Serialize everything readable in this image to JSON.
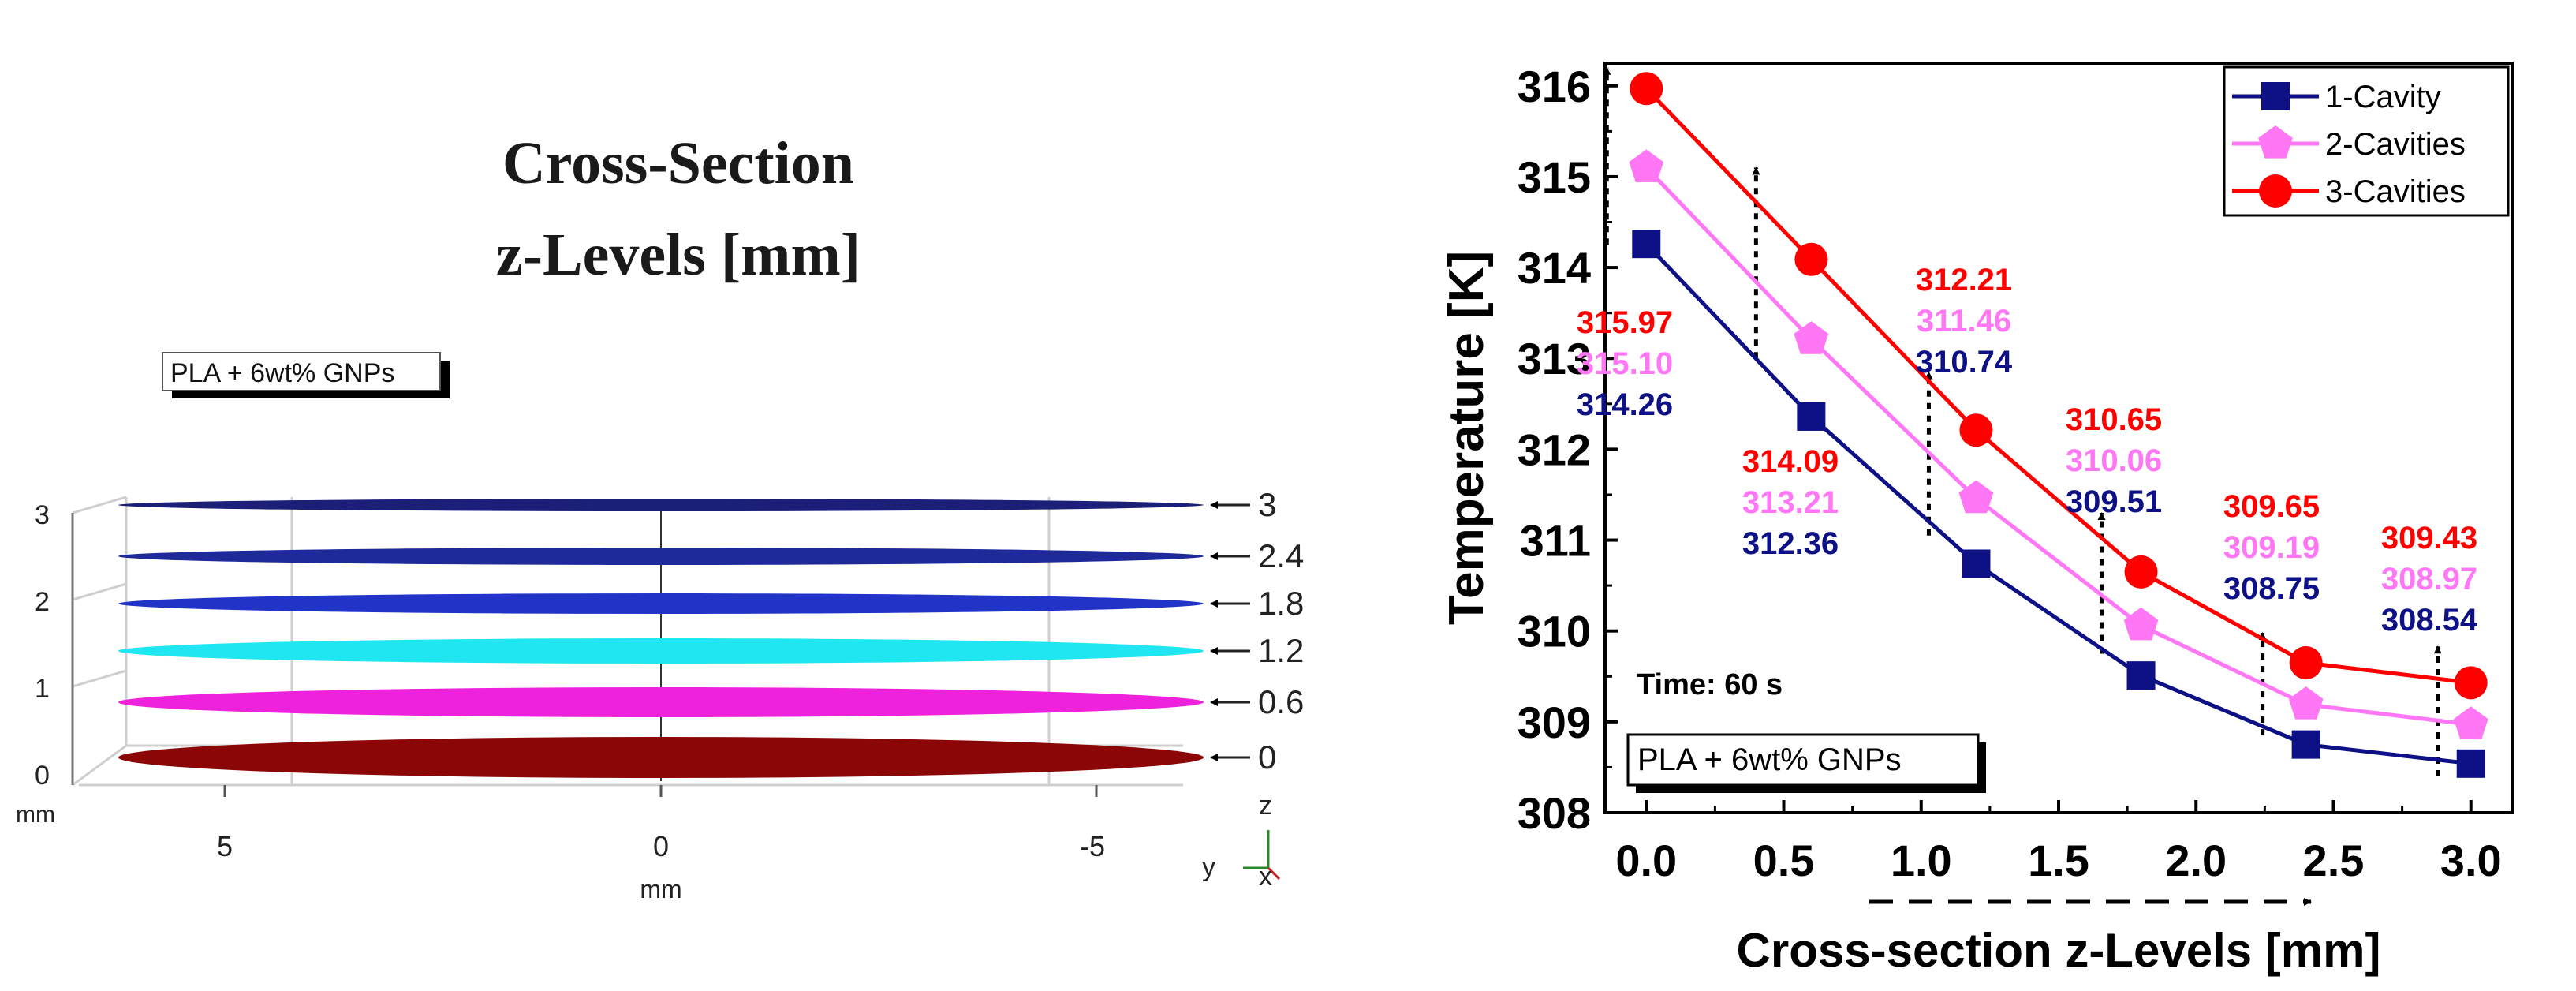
{
  "left_panel": {
    "title_line1": "Cross-Section",
    "title_line2": "z-Levels [mm]",
    "material_label": "PLA + 6wt% GNPs",
    "vertical_axis": {
      "unit": "mm",
      "ticks": [
        "3",
        "2",
        "1",
        "0"
      ]
    },
    "horizontal_axis": {
      "unit": "mm",
      "ticks": [
        "5",
        "0",
        "-5"
      ]
    },
    "triad": {
      "z": "z",
      "y": "y",
      "x": "x"
    },
    "levels": [
      {
        "label": "3",
        "color": "#1b1f78"
      },
      {
        "label": "2.4",
        "color": "#1e2a9a"
      },
      {
        "label": "1.8",
        "color": "#2234c8"
      },
      {
        "label": "1.2",
        "color": "#1fe6f0"
      },
      {
        "label": "0.6",
        "color": "#ee22dc"
      },
      {
        "label": "0",
        "color": "#8b0606"
      }
    ]
  },
  "chart_data": {
    "type": "line",
    "xlabel": "Cross-section z-Levels [mm]",
    "ylabel": "Temperature [K]",
    "x": [
      0.0,
      0.6,
      1.2,
      1.8,
      2.4,
      3.0
    ],
    "xticks": [
      "0.0",
      "0.5",
      "1.0",
      "1.5",
      "2.0",
      "2.5",
      "3.0"
    ],
    "xtick_values": [
      0,
      0.5,
      1.0,
      1.5,
      2.0,
      2.5,
      3.0
    ],
    "xlim": [
      -0.15,
      3.15
    ],
    "yticks": [
      "308",
      "309",
      "310",
      "311",
      "312",
      "313",
      "314",
      "315",
      "316"
    ],
    "ylim": [
      308,
      316.25
    ],
    "series": [
      {
        "name": "1-Cavity",
        "color": "#0d1185",
        "marker": "square",
        "values": [
          314.26,
          312.36,
          310.74,
          309.51,
          308.75,
          308.54
        ],
        "labels": [
          "314.26",
          "312.36",
          "310.74",
          "309.51",
          "308.75",
          "308.54"
        ]
      },
      {
        "name": "2-Cavities",
        "color": "#ff77f5",
        "marker": "pentagon",
        "values": [
          315.1,
          313.21,
          311.46,
          310.06,
          309.19,
          308.97
        ],
        "labels": [
          "315.10",
          "313.21",
          "311.46",
          "310.06",
          "309.19",
          "308.97"
        ]
      },
      {
        "name": "3-Cavities",
        "color": "#ff0000",
        "marker": "circle",
        "values": [
          315.97,
          314.09,
          312.21,
          310.65,
          309.65,
          309.43
        ],
        "labels": [
          "315.97",
          "314.09",
          "312.21",
          "310.65",
          "309.65",
          "309.43"
        ]
      }
    ],
    "annotations": {
      "time": "Time: 60 s",
      "material": "PLA + 6wt% GNPs"
    },
    "legend_position": "top-right"
  }
}
